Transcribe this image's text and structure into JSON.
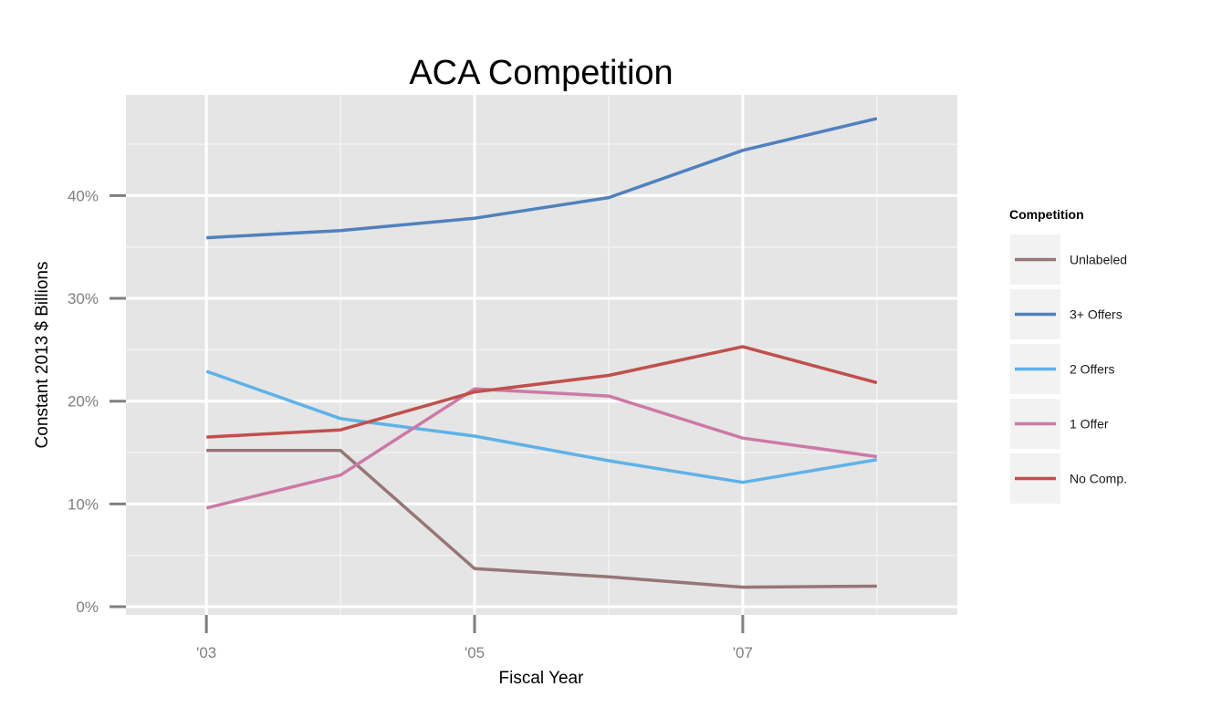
{
  "chart_data": {
    "type": "line",
    "title": "ACA Competition",
    "xlabel": "Fiscal Year",
    "ylabel": "Constant 2013 $ Billions",
    "x": [
      2003,
      2004,
      2005,
      2006,
      2007,
      2008
    ],
    "xlim": [
      2002.4,
      2008.6
    ],
    "ylim": [
      -0.8,
      49.8
    ],
    "x_ticks": [
      {
        "value": 2003,
        "label": "'03"
      },
      {
        "value": 2005,
        "label": "'05"
      },
      {
        "value": 2007,
        "label": "'07"
      }
    ],
    "y_ticks": [
      {
        "value": 0,
        "label": "0%"
      },
      {
        "value": 10,
        "label": "10%"
      },
      {
        "value": 20,
        "label": "20%"
      },
      {
        "value": 30,
        "label": "30%"
      },
      {
        "value": 40,
        "label": "40%"
      }
    ],
    "grid": true,
    "legend": {
      "title": "Competition",
      "position": "right"
    },
    "series": [
      {
        "name": "Unlabeled",
        "color": "#967676",
        "values": [
          15.2,
          15.2,
          3.7,
          2.9,
          1.9,
          2.0
        ]
      },
      {
        "name": "3+ Offers",
        "color": "#4f81bd",
        "values": [
          35.9,
          36.6,
          37.8,
          39.8,
          44.4,
          47.5
        ]
      },
      {
        "name": "2 Offers",
        "color": "#5fb2e8",
        "values": [
          22.9,
          18.3,
          16.6,
          14.2,
          12.1,
          14.3
        ]
      },
      {
        "name": "1 Offer",
        "color": "#cc79a7",
        "values": [
          9.6,
          12.8,
          21.2,
          20.5,
          16.4,
          14.6
        ]
      },
      {
        "name": "No Comp.",
        "color": "#c0504d",
        "values": [
          16.5,
          17.2,
          20.9,
          22.5,
          25.3,
          21.8
        ]
      }
    ]
  }
}
